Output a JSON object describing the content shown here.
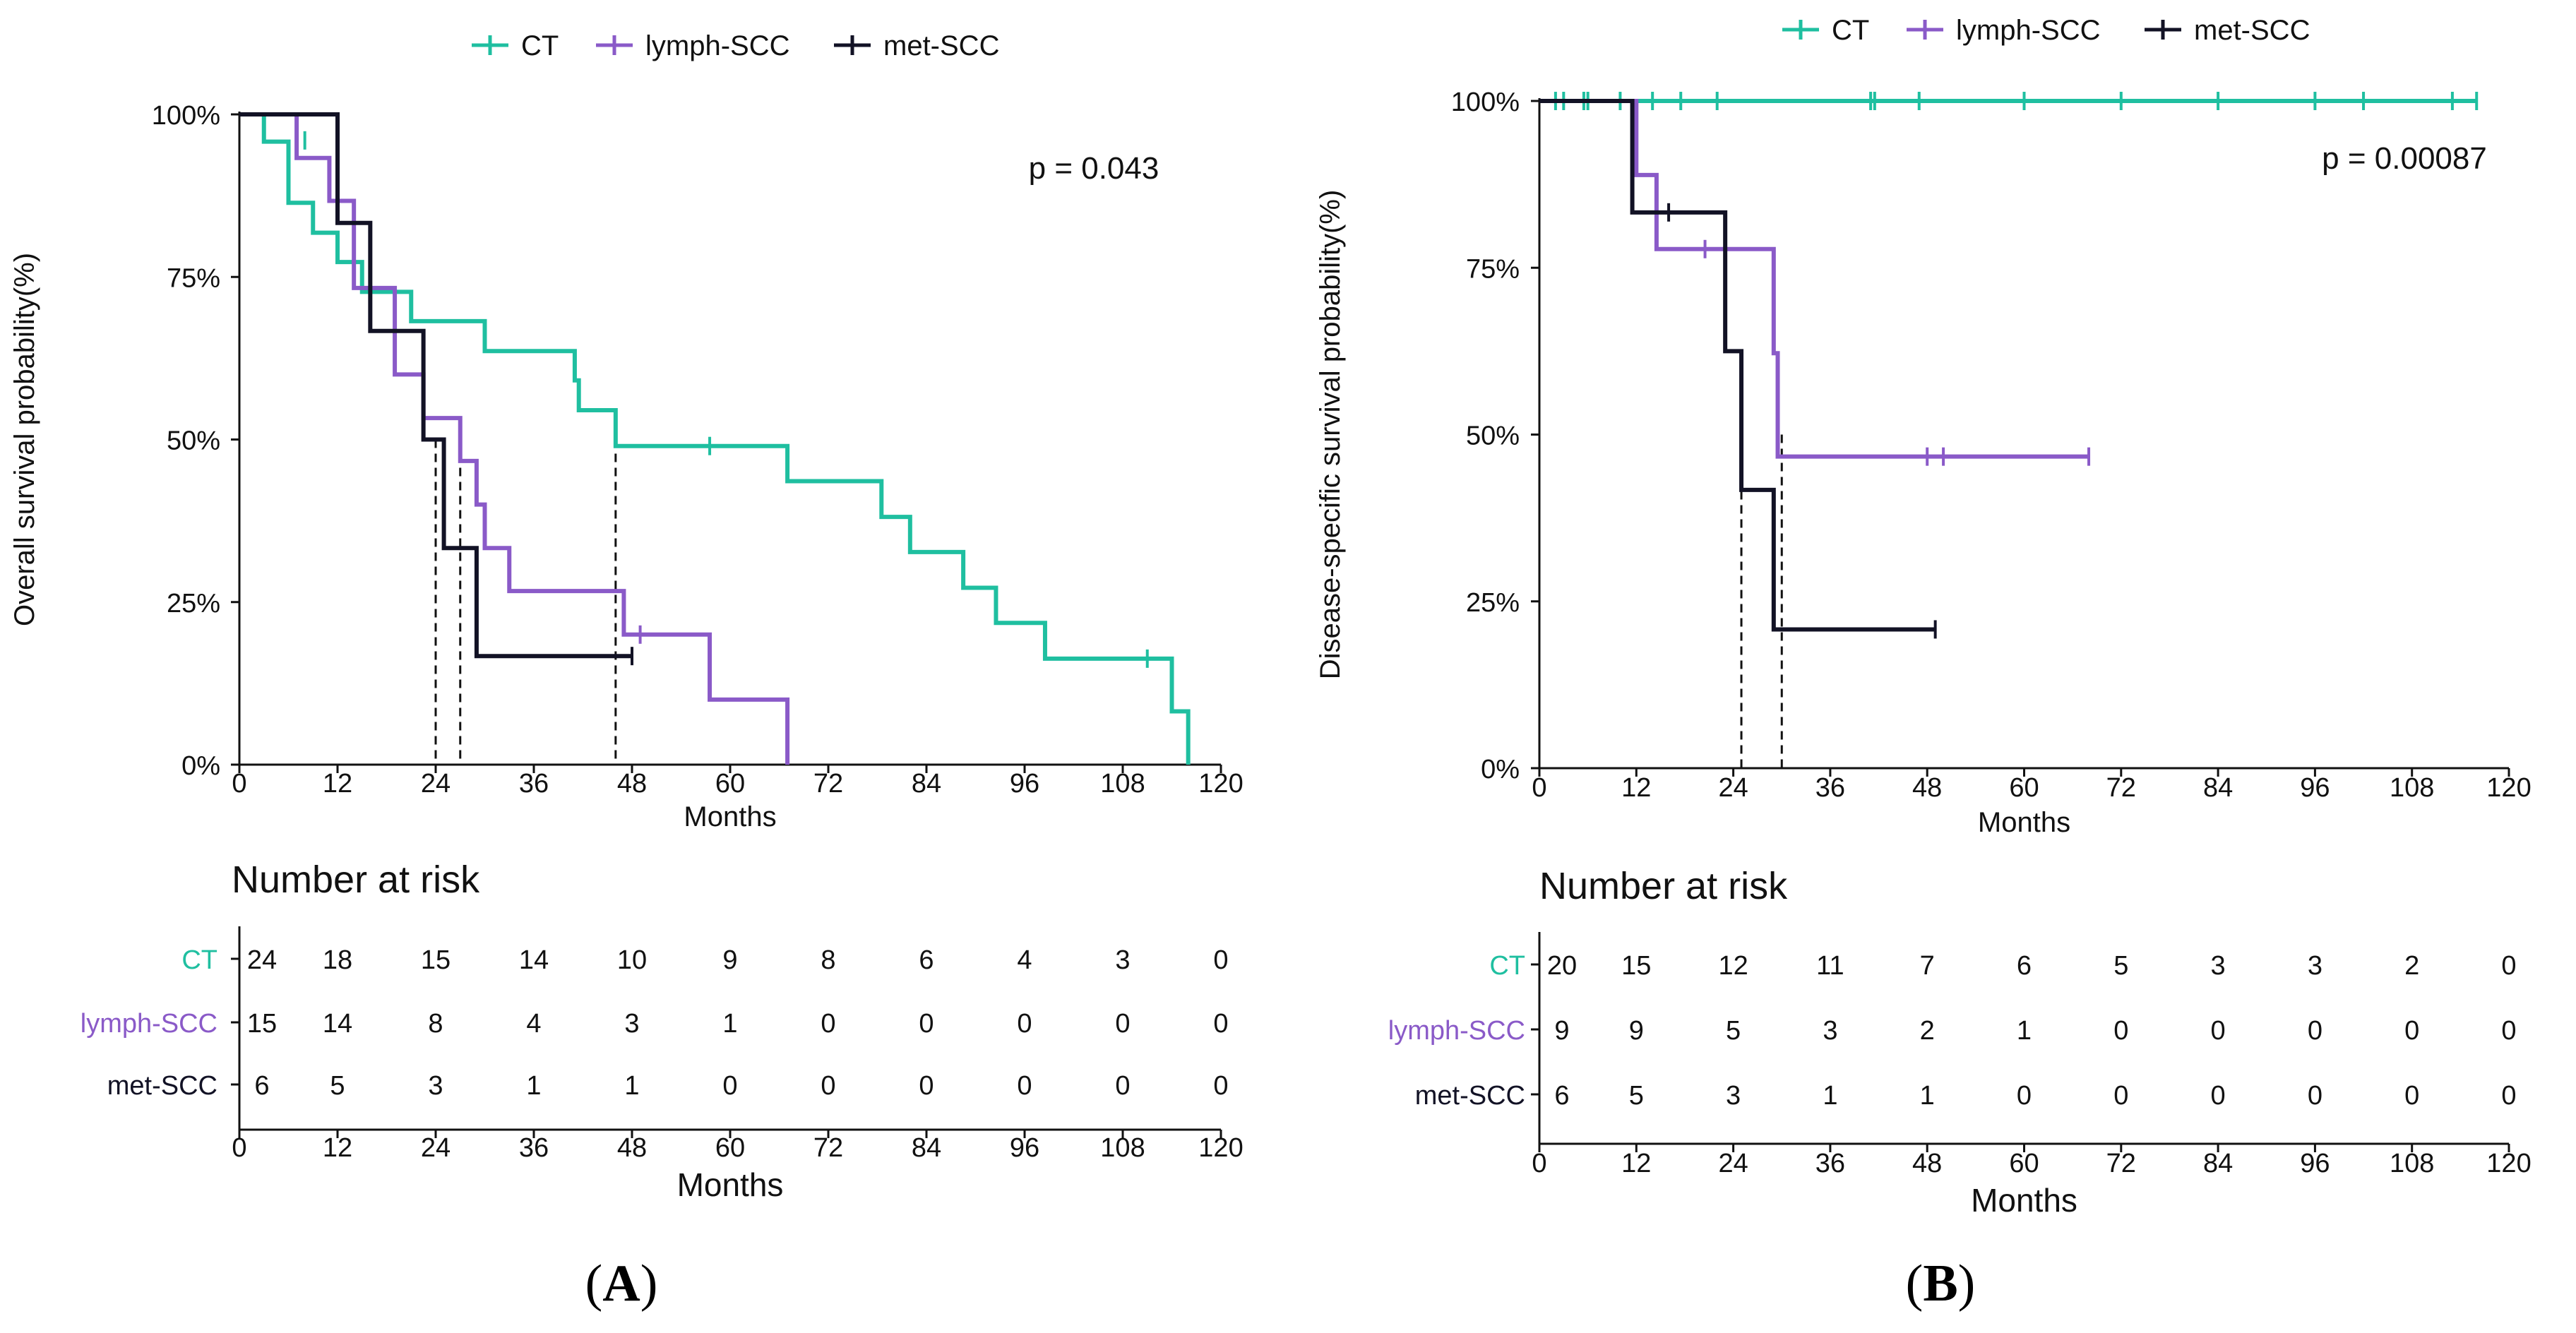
{
  "chart_data": [
    {
      "panel": "A",
      "type": "line",
      "subtype": "kaplan-meier step",
      "ylabel": "Overall survival probability(%)",
      "xlabel": "Months",
      "xlim": [
        0,
        120
      ],
      "ylim": [
        0,
        100
      ],
      "xticks": [
        "0",
        "12",
        "24",
        "36",
        "48",
        "60",
        "72",
        "84",
        "96",
        "108",
        "120"
      ],
      "yticks": [
        "0%",
        "25%",
        "50%",
        "75%",
        "100%"
      ],
      "legend_position": "top",
      "p_value": "p = 0.043",
      "series": [
        {
          "name": "CT",
          "color": "#1fbfa0",
          "steps": [
            [
              0,
              100
            ],
            [
              3,
              95.8
            ],
            [
              6,
              86.4
            ],
            [
              9,
              81.8
            ],
            [
              12,
              77.3
            ],
            [
              15,
              72.7
            ],
            [
              21,
              68.2
            ],
            [
              30,
              63.6
            ],
            [
              41,
              59.1
            ],
            [
              41.5,
              54.5
            ],
            [
              46,
              49.0
            ],
            [
              67,
              43.6
            ],
            [
              78.5,
              38.1
            ],
            [
              82,
              32.7
            ],
            [
              88.5,
              27.2
            ],
            [
              92.5,
              21.8
            ],
            [
              98.5,
              16.3
            ],
            [
              114,
              8.2
            ],
            [
              116,
              0
            ]
          ],
          "censor": [
            [
              3,
              97.5
            ],
            [
              8,
              96
            ],
            [
              57.5,
              49
            ],
            [
              111,
              16.3
            ]
          ]
        },
        {
          "name": "lymph-SCC",
          "color": "#8a5ac8",
          "steps": [
            [
              0,
              100
            ],
            [
              7,
              93.3
            ],
            [
              11,
              86.7
            ],
            [
              14,
              73.3
            ],
            [
              19,
              60
            ],
            [
              22.5,
              53.3
            ],
            [
              27,
              46.7
            ],
            [
              29,
              40
            ],
            [
              30,
              33.3
            ],
            [
              33,
              26.7
            ],
            [
              47,
              20
            ],
            [
              57.5,
              10
            ],
            [
              67,
              0
            ]
          ],
          "censor": [
            [
              49,
              20
            ]
          ]
        },
        {
          "name": "met-SCC",
          "color": "#121225",
          "steps": [
            [
              0,
              100
            ],
            [
              12,
              83.3
            ],
            [
              16,
              66.7
            ],
            [
              22.5,
              50
            ],
            [
              25,
              33.3
            ],
            [
              29,
              16.7
            ]
          ],
          "censor": [
            [
              48,
              16.7
            ]
          ],
          "end": 48
        }
      ],
      "median_lines": [
        24,
        27,
        46
      ],
      "risk_table": {
        "title": "Number at risk",
        "xlabel": "Months",
        "times": [
          0,
          12,
          24,
          36,
          48,
          60,
          72,
          84,
          96,
          108,
          120
        ],
        "rows": [
          {
            "label": "CT",
            "color": "#1fbfa0",
            "values": [
              "24",
              "18",
              "15",
              "14",
              "10",
              "9",
              "8",
              "6",
              "4",
              "3",
              "0"
            ]
          },
          {
            "label": "lymph-SCC",
            "color": "#8a5ac8",
            "values": [
              "15",
              "14",
              "8",
              "4",
              "3",
              "1",
              "0",
              "0",
              "0",
              "0",
              "0"
            ]
          },
          {
            "label": "met-SCC",
            "color": "#121225",
            "values": [
              "6",
              "5",
              "3",
              "1",
              "1",
              "0",
              "0",
              "0",
              "0",
              "0",
              "0"
            ]
          }
        ]
      },
      "caption": "A"
    },
    {
      "panel": "B",
      "type": "line",
      "subtype": "kaplan-meier step",
      "ylabel": "Disease-specific survival probability(%)",
      "xlabel": "Months",
      "xlim": [
        0,
        120
      ],
      "ylim": [
        0,
        100
      ],
      "xticks": [
        "0",
        "12",
        "24",
        "36",
        "48",
        "60",
        "72",
        "84",
        "96",
        "108",
        "120"
      ],
      "yticks": [
        "0%",
        "25%",
        "50%",
        "75%",
        "100%"
      ],
      "legend_position": "top",
      "p_value": "p = 0.00087",
      "series": [
        {
          "name": "CT",
          "color": "#1fbfa0",
          "steps": [
            [
              0,
              100
            ]
          ],
          "censor": [
            [
              2,
              100
            ],
            [
              3,
              100
            ],
            [
              5.5,
              100
            ],
            [
              6,
              100
            ],
            [
              10,
              100
            ],
            [
              14,
              100
            ],
            [
              17.5,
              100
            ],
            [
              22,
              100
            ],
            [
              41,
              100
            ],
            [
              41.5,
              100
            ],
            [
              47,
              100
            ],
            [
              60,
              100
            ],
            [
              72,
              100
            ],
            [
              84,
              100
            ],
            [
              96,
              100
            ],
            [
              102,
              100
            ],
            [
              113,
              100
            ],
            [
              116,
              100
            ]
          ],
          "end": 116
        },
        {
          "name": "lymph-SCC",
          "color": "#8a5ac8",
          "steps": [
            [
              0,
              100
            ],
            [
              12,
              88.9
            ],
            [
              14.5,
              77.8
            ],
            [
              29,
              62.2
            ],
            [
              29.5,
              46.7
            ]
          ],
          "censor": [
            [
              20.5,
              77.8
            ],
            [
              48,
              46.7
            ],
            [
              50,
              46.7
            ],
            [
              68,
              46.7
            ]
          ],
          "end": 68
        },
        {
          "name": "met-SCC",
          "color": "#121225",
          "steps": [
            [
              0,
              100
            ],
            [
              11.5,
              83.3
            ],
            [
              23,
              62.5
            ],
            [
              25,
              41.7
            ],
            [
              29,
              20.8
            ]
          ],
          "censor": [
            [
              16,
              83.3
            ],
            [
              49,
              20.8
            ]
          ],
          "end": 49
        }
      ],
      "median_lines": [
        25,
        30
      ],
      "risk_table": {
        "title": "Number at risk",
        "xlabel": "Months",
        "times": [
          0,
          12,
          24,
          36,
          48,
          60,
          72,
          84,
          96,
          108,
          120
        ],
        "rows": [
          {
            "label": "CT",
            "color": "#1fbfa0",
            "values": [
              "20",
              "15",
              "12",
              "11",
              "7",
              "6",
              "5",
              "3",
              "3",
              "2",
              "0"
            ]
          },
          {
            "label": "lymph-SCC",
            "color": "#8a5ac8",
            "values": [
              "9",
              "9",
              "5",
              "3",
              "2",
              "1",
              "0",
              "0",
              "0",
              "0",
              "0"
            ]
          },
          {
            "label": "met-SCC",
            "color": "#121225",
            "values": [
              "6",
              "5",
              "3",
              "1",
              "1",
              "0",
              "0",
              "0",
              "0",
              "0",
              "0"
            ]
          }
        ]
      },
      "caption": "B"
    }
  ]
}
